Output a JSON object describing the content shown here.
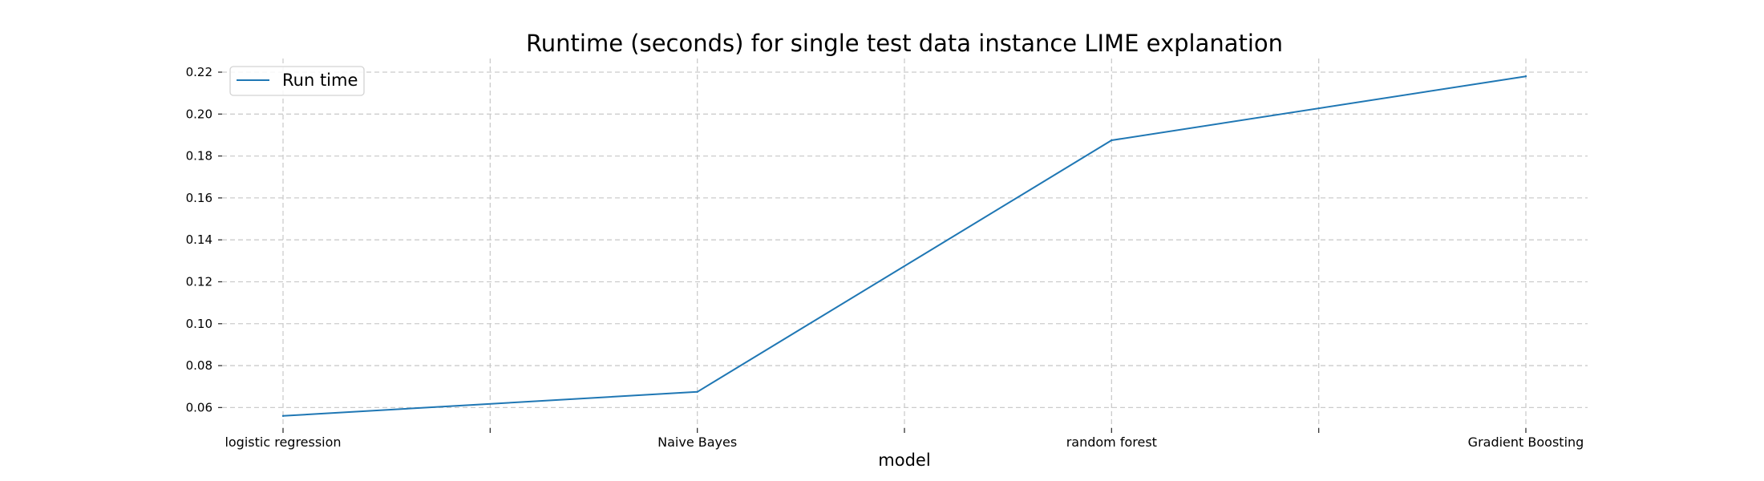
{
  "chart_data": {
    "type": "line",
    "title": "Runtime (seconds) for single test data instance LIME explanation",
    "xlabel": "model",
    "ylabel": "",
    "categories": [
      "logistic regression",
      "Naive Bayes",
      "random forest",
      "Gradient Boosting"
    ],
    "x_ticks": [
      0,
      0.5,
      1,
      1.5,
      2,
      2.5,
      3
    ],
    "x_tick_labels": [
      "logistic regression",
      "",
      "Naive Bayes",
      "",
      "random forest",
      "",
      "Gradient Boosting"
    ],
    "ylim": [
      0.0502,
      0.2265
    ],
    "y_ticks": [
      0.06,
      0.08,
      0.1,
      0.12,
      0.14,
      0.16,
      0.18,
      0.2,
      0.22
    ],
    "y_tick_labels": [
      "0.06",
      "0.08",
      "0.10",
      "0.12",
      "0.14",
      "0.16",
      "0.18",
      "0.20",
      "0.22"
    ],
    "series": [
      {
        "name": "Run time",
        "color": "#1f77b4",
        "values": [
          0.056,
          0.0675,
          0.1875,
          0.218
        ]
      }
    ],
    "grid": true,
    "legend_position": "top-left"
  }
}
